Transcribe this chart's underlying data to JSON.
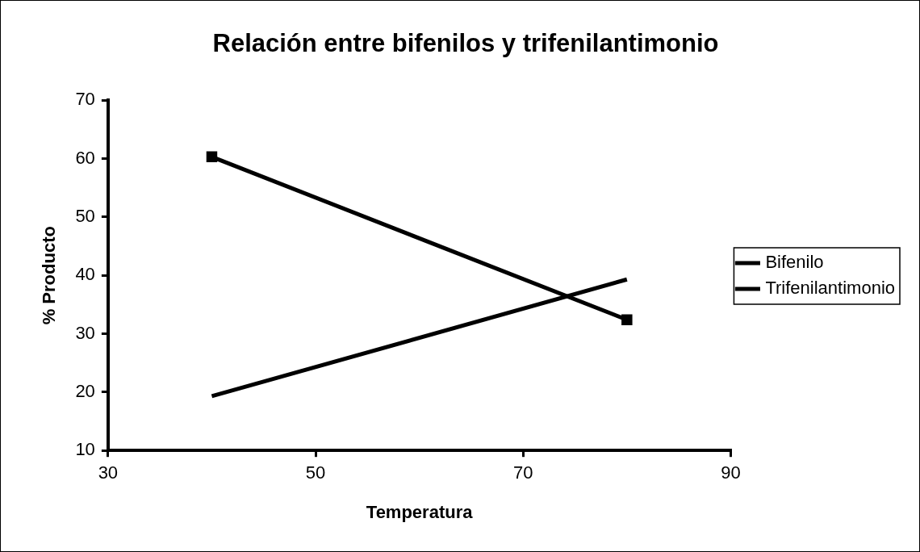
{
  "chart_data": {
    "type": "line",
    "title": "Relación entre bifenilos y trifenilantimonio",
    "xlabel": "Temperatura",
    "ylabel": "% Producto",
    "x": [
      40,
      80
    ],
    "series": [
      {
        "name": "Bifenilo",
        "color": "#000000",
        "values": [
          19.3,
          39.3
        ],
        "marker": "none"
      },
      {
        "name": "Trifenilantimonio",
        "color": "#000000",
        "values": [
          60.3,
          32.4
        ],
        "marker": "square"
      }
    ],
    "xlim": [
      30,
      90
    ],
    "xticks": [
      30,
      50,
      70,
      90
    ],
    "ylim": [
      10,
      70
    ],
    "yticks": [
      10,
      20,
      30,
      40,
      50,
      60,
      70
    ],
    "grid": false,
    "legend": "right",
    "line_style": "solid"
  }
}
